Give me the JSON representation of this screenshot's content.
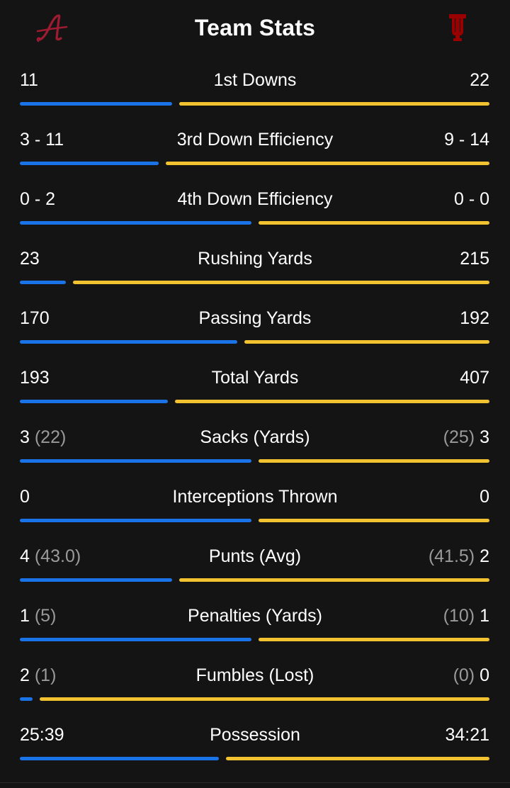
{
  "header": {
    "title": "Team Stats",
    "left_team_logo": "alabama-script-a-logo",
    "right_team_logo": "indiana-iu-logo"
  },
  "colors": {
    "background": "#141414",
    "left_team_bar": "#1b73e8",
    "right_team_bar": "#f2c230",
    "left_logo": "#9e1b32",
    "right_logo": "#990000"
  },
  "stats": [
    {
      "label": "1st Downs",
      "left": "11",
      "left_sub": "",
      "right": "22",
      "right_sub": "",
      "left_share": 0.33
    },
    {
      "label": "3rd Down Efficiency",
      "left": "3 - 11",
      "left_sub": "",
      "right": "9 - 14",
      "right_sub": "",
      "left_share": 0.3
    },
    {
      "label": "4th Down Efficiency",
      "left": "0 - 2",
      "left_sub": "",
      "right": "0 - 0",
      "right_sub": "",
      "left_share": 0.5
    },
    {
      "label": "Rushing Yards",
      "left": "23",
      "left_sub": "",
      "right": "215",
      "right_sub": "",
      "left_share": 0.1
    },
    {
      "label": "Passing Yards",
      "left": "170",
      "left_sub": "",
      "right": "192",
      "right_sub": "",
      "left_share": 0.47
    },
    {
      "label": "Total Yards",
      "left": "193",
      "left_sub": "",
      "right": "407",
      "right_sub": "",
      "left_share": 0.32
    },
    {
      "label": "Sacks (Yards)",
      "left": "3",
      "left_sub": "(22)",
      "right": "3",
      "right_sub": "(25)",
      "left_share": 0.5
    },
    {
      "label": "Interceptions Thrown",
      "left": "0",
      "left_sub": "",
      "right": "0",
      "right_sub": "",
      "left_share": 0.5
    },
    {
      "label": "Punts (Avg)",
      "left": "4",
      "left_sub": "(43.0)",
      "right": "2",
      "right_sub": "(41.5)",
      "left_share": 0.33
    },
    {
      "label": "Penalties (Yards)",
      "left": "1",
      "left_sub": "(5)",
      "right": "1",
      "right_sub": "(10)",
      "left_share": 0.5
    },
    {
      "label": "Fumbles (Lost)",
      "left": "2",
      "left_sub": "(1)",
      "right": "0",
      "right_sub": "(0)",
      "left_share": 0.02
    },
    {
      "label": "Possession",
      "left": "25:39",
      "left_sub": "",
      "right": "34:21",
      "right_sub": "",
      "left_share": 0.43
    }
  ]
}
